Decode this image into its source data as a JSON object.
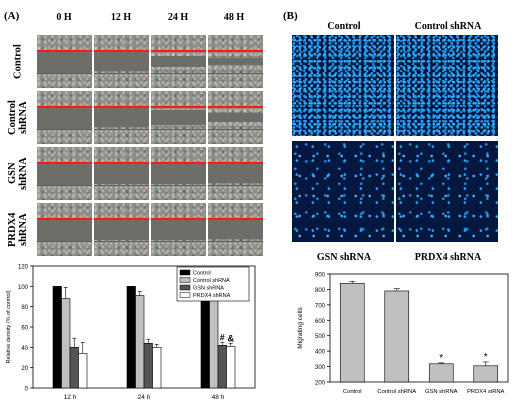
{
  "panel_a": {
    "label": "(A)",
    "time_points": [
      "0 H",
      "12 H",
      "24 H",
      "48 H"
    ],
    "rows": [
      {
        "label": "Control",
        "gap_fraction": [
          0.42,
          0.36,
          0.2,
          0.12
        ]
      },
      {
        "label": "Control\nshRNA",
        "gap_fraction": [
          0.42,
          0.36,
          0.28,
          0.18
        ]
      },
      {
        "label": "GSN\nshRNA",
        "gap_fraction": [
          0.42,
          0.4,
          0.38,
          0.34
        ]
      },
      {
        "label": "PRDX4\nshRNA",
        "gap_fraction": [
          0.42,
          0.4,
          0.38,
          0.34
        ]
      }
    ]
  },
  "panel_b": {
    "label": "(B)",
    "images": [
      {
        "label": "Control",
        "density": "dense"
      },
      {
        "label": "Control shRNA",
        "density": "dense"
      },
      {
        "label": "GSN shRNA",
        "density": "sparse"
      },
      {
        "label": "PRDX4 shRNA",
        "density": "sparse"
      }
    ]
  },
  "colors": {
    "control": "#000000",
    "control_shrna": "#c0c0c0",
    "gsn_shrna": "#555555",
    "prdx4_shrna": "#ffffff",
    "b_bars": "#c0c0c0",
    "scratch_gap": "#6e6e69",
    "red_line": "#ff1a1a"
  },
  "chart_data": [
    {
      "type": "bar",
      "ylabel": "Relative density (% of control)",
      "xlabel": "",
      "ylim": [
        0,
        120
      ],
      "yticks": [
        0,
        20,
        40,
        60,
        80,
        100,
        120
      ],
      "categories": [
        "12 h",
        "24 h",
        "48 h"
      ],
      "legend_position": "top-right",
      "series": [
        {
          "name": "Control",
          "values": [
            100,
            100,
            100
          ],
          "errors": [
            0,
            0,
            0
          ]
        },
        {
          "name": "Control shRNA",
          "values": [
            88,
            91,
            93
          ],
          "errors": [
            11,
            4,
            6
          ]
        },
        {
          "name": "GSN shRNA",
          "values": [
            40,
            44,
            42
          ],
          "errors": [
            9,
            4,
            3
          ]
        },
        {
          "name": "PRDX4 shRNA",
          "values": [
            34,
            40,
            41
          ],
          "errors": [
            11,
            3,
            3
          ]
        }
      ],
      "annotations": [
        {
          "category": "48 h",
          "series": "GSN shRNA",
          "text": "#"
        },
        {
          "category": "48 h",
          "series": "PRDX4 shRNA",
          "text": "&"
        }
      ]
    },
    {
      "type": "bar",
      "ylabel": "Migrating cells",
      "xlabel": "",
      "ylim": [
        200,
        900
      ],
      "yticks": [
        200,
        300,
        400,
        500,
        600,
        700,
        800,
        900
      ],
      "categories": [
        "Control",
        "Control shRNA",
        "GSN shRNA",
        "PRDX4 siRNA"
      ],
      "values": [
        840,
        790,
        318,
        305
      ],
      "errors": [
        12,
        15,
        6,
        25
      ],
      "annotations": [
        {
          "category": "GSN shRNA",
          "text": "*"
        },
        {
          "category": "PRDX4 siRNA",
          "text": "*"
        }
      ]
    }
  ]
}
